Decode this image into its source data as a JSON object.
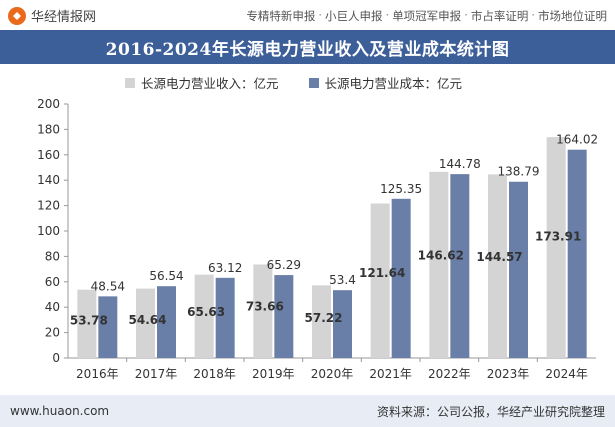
{
  "header": {
    "brand": "华经情报网",
    "services": [
      "专精特新申报",
      "小巨人申报",
      "单项冠军申报",
      "市占率证明",
      "市场地位证明"
    ],
    "separator": "·"
  },
  "colors": {
    "title_bg": "#3d5f99",
    "revenue_bar": "#d4d4d4",
    "cost_bar": "#6a7fa8",
    "footer_bg": "#e8edf5",
    "logo": "#e86a1a"
  },
  "chart_data": {
    "type": "bar",
    "title": "2016-2024年长源电力营业收入及营业成本统计图",
    "categories": [
      "2016年",
      "2017年",
      "2018年",
      "2019年",
      "2020年",
      "2021年",
      "2022年",
      "2023年",
      "2024年"
    ],
    "series": [
      {
        "name": "长源电力营业收入：亿元",
        "values": [
          53.78,
          54.64,
          65.63,
          73.66,
          57.22,
          121.64,
          146.62,
          144.57,
          173.91
        ]
      },
      {
        "name": "长源电力营业成本：亿元",
        "values": [
          48.54,
          56.54,
          63.12,
          65.29,
          53.4,
          125.35,
          144.78,
          138.79,
          164.02
        ]
      }
    ],
    "ylim": [
      0,
      200
    ],
    "yticks": [
      0,
      20,
      40,
      60,
      80,
      100,
      120,
      140,
      160,
      180,
      200
    ],
    "xlabel": "",
    "ylabel": "",
    "grid": false,
    "legend": "top-center"
  },
  "footer": {
    "website": "www.huaon.com",
    "source": "资料来源：公司公报，华经产业研究院整理"
  }
}
